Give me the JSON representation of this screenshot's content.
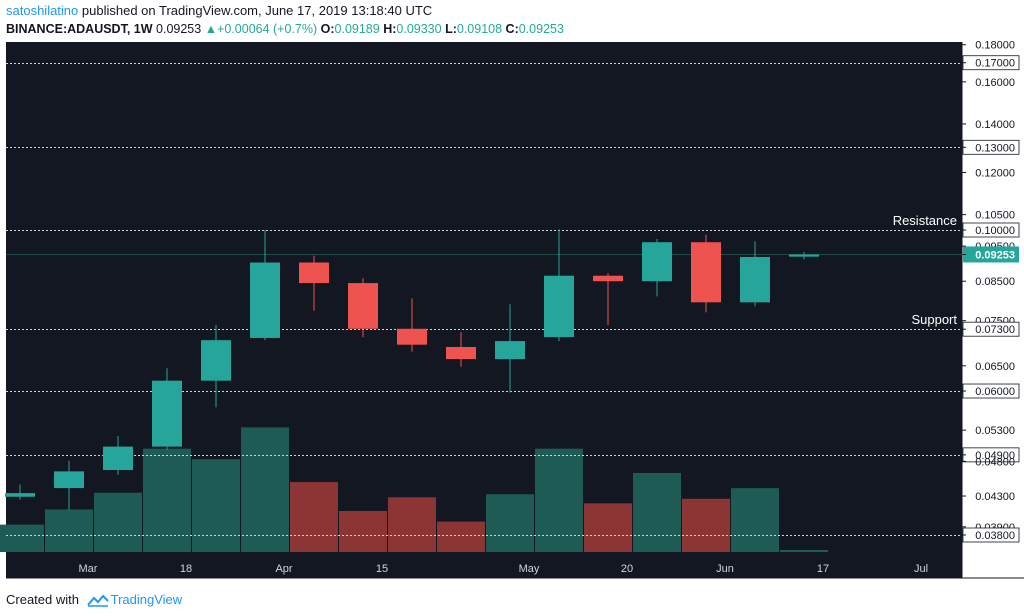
{
  "header": {
    "author": "satoshilatino",
    "published_text": "published on TradingView.com, June 17, 2019 13:18:40 UTC",
    "symbol": "BINANCE:ADAUSDT, 1W",
    "last": "0.09253",
    "up_arrow": "▲",
    "change": "+0.00064 (+0.7%)",
    "o_label": "O:",
    "o_value": "0.09189",
    "h_label": "H:",
    "h_value": "0.09330",
    "l_label": "L:",
    "l_value": "0.09108",
    "c_label": "C:",
    "c_value": "0.09253"
  },
  "footer": {
    "created_with": "Created with",
    "brand": "TradingView",
    "logo_icon": "tradingview-logo-icon"
  },
  "colors": {
    "background": "#131722",
    "bull": "#26a69a",
    "bear": "#ef5350",
    "bull_volume": "#1e5b55",
    "bear_volume": "#8b3534",
    "level_line": "#d1d4dc",
    "last_price_line": "#1f4a47",
    "axis_text": "#131722"
  },
  "chart_data": {
    "type": "candlestick",
    "interval": "1W",
    "y_scale": "log",
    "y_ticks": [
      "0.18000",
      "0.17000",
      "0.16000",
      "0.14000",
      "0.13000",
      "0.12000",
      "0.10500",
      "0.10000",
      "0.09500",
      "0.09253",
      "0.08500",
      "0.07500",
      "0.07300",
      "0.06500",
      "0.06000",
      "0.05300",
      "0.04900",
      "0.04800",
      "0.04300",
      "0.03900",
      "0.03800"
    ],
    "x_ticks": [
      "Mar",
      "18",
      "Apr",
      "15",
      "May",
      "20",
      "Jun",
      "17",
      "Jul"
    ],
    "candles": [
      {
        "o": 0.0429,
        "h": 0.0446,
        "l": 0.0425,
        "c": 0.0434
      },
      {
        "o": 0.0441,
        "h": 0.0481,
        "l": 0.0411,
        "c": 0.0465
      },
      {
        "o": 0.0467,
        "h": 0.052,
        "l": 0.046,
        "c": 0.0503
      },
      {
        "o": 0.0503,
        "h": 0.0645,
        "l": 0.0498,
        "c": 0.062
      },
      {
        "o": 0.062,
        "h": 0.074,
        "l": 0.057,
        "c": 0.0705
      },
      {
        "o": 0.071,
        "h": 0.1,
        "l": 0.0705,
        "c": 0.0902
      },
      {
        "o": 0.0902,
        "h": 0.0922,
        "l": 0.0774,
        "c": 0.0845
      },
      {
        "o": 0.0845,
        "h": 0.0858,
        "l": 0.0712,
        "c": 0.0731
      },
      {
        "o": 0.0731,
        "h": 0.0805,
        "l": 0.068,
        "c": 0.0695
      },
      {
        "o": 0.069,
        "h": 0.0723,
        "l": 0.0648,
        "c": 0.0664
      },
      {
        "o": 0.0664,
        "h": 0.079,
        "l": 0.0597,
        "c": 0.0703
      },
      {
        "o": 0.0712,
        "h": 0.1002,
        "l": 0.0703,
        "c": 0.0865
      },
      {
        "o": 0.0865,
        "h": 0.0872,
        "l": 0.074,
        "c": 0.085
      },
      {
        "o": 0.085,
        "h": 0.0972,
        "l": 0.081,
        "c": 0.0962
      },
      {
        "o": 0.0962,
        "h": 0.0985,
        "l": 0.077,
        "c": 0.0795
      },
      {
        "o": 0.0795,
        "h": 0.0965,
        "l": 0.0785,
        "c": 0.0918
      },
      {
        "o": 0.09189,
        "h": 0.0933,
        "l": 0.09108,
        "c": 0.09253
      }
    ],
    "volumes": [
      0.18,
      0.28,
      0.39,
      0.68,
      0.61,
      0.82,
      0.46,
      0.27,
      0.36,
      0.2,
      0.38,
      0.68,
      0.32,
      0.52,
      0.35,
      0.42,
      0.01
    ],
    "levels": [
      {
        "value": 0.17,
        "label": "0.17000"
      },
      {
        "value": 0.13,
        "label": "0.13000"
      },
      {
        "value": 0.1,
        "label": "0.10000"
      },
      {
        "value": 0.073,
        "label": "0.07300"
      },
      {
        "value": 0.06,
        "label": "0.06000"
      },
      {
        "value": 0.049,
        "label": "0.04900"
      },
      {
        "value": 0.038,
        "label": "0.03800"
      }
    ],
    "last_price": {
      "value": 0.09253,
      "label": "0.09253"
    },
    "annotations": [
      {
        "text": "Resistance",
        "at": 0.1
      },
      {
        "text": "Support",
        "at": 0.073
      }
    ]
  }
}
